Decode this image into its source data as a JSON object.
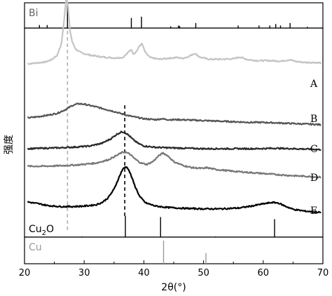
{
  "chart_data": {
    "type": "line",
    "xlabel": "2θ(°)",
    "ylabel": "强度(a.u.)",
    "ylabel_visible": "强度",
    "xlim": [
      20,
      70
    ],
    "x_ticks": [
      20,
      30,
      40,
      50,
      60,
      70
    ],
    "y_ticks_shown": false,
    "grid": false,
    "dashed_guides_2theta": [
      27.2,
      36.8
    ],
    "series": [
      {
        "name": "A",
        "color": "#c4c4c4",
        "x": [
          20.5,
          22,
          23.5,
          24.5,
          25.5,
          26.2,
          26.7,
          27.0,
          27.3,
          27.6,
          28.0,
          28.6,
          29.5,
          31,
          33,
          35,
          36.5,
          37.3,
          37.8,
          38.3,
          38.8,
          39.3,
          39.7,
          40.2,
          41,
          42.5,
          44,
          45.5,
          46.5,
          47.5,
          48.5,
          49.5,
          51,
          53,
          55,
          56,
          57.5,
          59,
          61,
          63,
          64.5,
          65.5,
          67,
          68.5,
          69.7
        ],
        "y": [
          0.6,
          0.62,
          0.64,
          0.69,
          0.79,
          1.05,
          1.65,
          2.1,
          1.85,
          1.35,
          1.08,
          0.92,
          0.84,
          0.79,
          0.75,
          0.73,
          0.74,
          0.84,
          0.92,
          0.82,
          0.88,
          1.0,
          1.04,
          0.86,
          0.74,
          0.7,
          0.72,
          0.74,
          0.72,
          0.76,
          0.83,
          0.74,
          0.7,
          0.7,
          0.71,
          0.75,
          0.69,
          0.67,
          0.67,
          0.66,
          0.69,
          0.65,
          0.63,
          0.63,
          0.62
        ]
      },
      {
        "name": "B",
        "color": "#555555",
        "x": [
          20.5,
          22,
          24,
          25.5,
          27,
          28,
          29,
          30,
          31,
          32,
          33.5,
          35,
          36.5,
          38,
          40,
          42,
          43,
          44,
          46,
          48,
          50,
          52,
          54,
          56,
          58,
          60,
          62,
          64,
          66,
          68,
          69.7
        ],
        "y": [
          0.0,
          0.02,
          0.06,
          0.1,
          0.19,
          0.27,
          0.31,
          0.3,
          0.27,
          0.24,
          0.19,
          0.14,
          0.08,
          0.03,
          -0.02,
          -0.04,
          -0.02,
          -0.04,
          -0.04,
          -0.05,
          -0.06,
          -0.07,
          -0.08,
          -0.09,
          -0.1,
          -0.1,
          -0.11,
          -0.12,
          -0.13,
          -0.14,
          -0.15
        ]
      },
      {
        "name": "C",
        "color": "#2a2a2a",
        "x": [
          20.5,
          23,
          26,
          29,
          31,
          33,
          34.5,
          35.5,
          36.3,
          36.8,
          37.4,
          38.2,
          39,
          40,
          42,
          44,
          47,
          50,
          53,
          56,
          59,
          62,
          65,
          68,
          69.7
        ],
        "y": [
          0.0,
          0.01,
          0.02,
          0.04,
          0.06,
          0.12,
          0.22,
          0.32,
          0.37,
          0.36,
          0.3,
          0.2,
          0.12,
          0.06,
          0.03,
          0.02,
          0.01,
          0.0,
          0.0,
          0.0,
          0.0,
          0.01,
          0.0,
          -0.01,
          -0.02
        ]
      },
      {
        "name": "D",
        "color": "#777777",
        "x": [
          20.5,
          23,
          26,
          29,
          32,
          34,
          35.5,
          36.3,
          36.9,
          37.6,
          38.5,
          39.5,
          40.5,
          41.5,
          42.5,
          43.2,
          44,
          45,
          46.5,
          48,
          50,
          50.5,
          52,
          55,
          58,
          61,
          64,
          67,
          69.7
        ],
        "y": [
          0.0,
          0.0,
          0.01,
          0.03,
          0.07,
          0.14,
          0.24,
          0.3,
          0.31,
          0.27,
          0.16,
          0.07,
          0.04,
          0.1,
          0.23,
          0.29,
          0.23,
          0.1,
          0.02,
          -0.03,
          -0.05,
          -0.03,
          -0.07,
          -0.11,
          -0.14,
          -0.17,
          -0.2,
          -0.22,
          -0.24
        ]
      },
      {
        "name": "E",
        "color": "#000000",
        "x": [
          20.5,
          22,
          24,
          26,
          28,
          30,
          32,
          33,
          34,
          35,
          35.8,
          36.4,
          36.9,
          37.3,
          37.8,
          38.5,
          39.3,
          40.3,
          42,
          44,
          47,
          50,
          53,
          56,
          58,
          60,
          61.5,
          62.5,
          63.5,
          65,
          67,
          69.7
        ],
        "y": [
          0.0,
          -0.03,
          -0.08,
          -0.1,
          -0.1,
          -0.09,
          -0.06,
          -0.01,
          0.09,
          0.28,
          0.53,
          0.71,
          0.77,
          0.75,
          0.6,
          0.35,
          0.12,
          -0.02,
          -0.09,
          -0.12,
          -0.14,
          -0.15,
          -0.15,
          -0.13,
          -0.09,
          -0.04,
          -0.01,
          -0.02,
          -0.08,
          -0.16,
          -0.2,
          -0.23
        ]
      }
    ],
    "reference_patterns": [
      {
        "name": "Bi",
        "color": "#000000",
        "label_color": "#666666",
        "peaks": [
          22.5,
          23.8,
          27.2,
          37.9,
          39.6,
          44.5,
          45.8,
          46.0,
          48.7,
          55.8,
          59.3,
          61.1,
          62.1,
          62.9,
          64.5,
          67.4
        ],
        "intensities": [
          0.12,
          0.12,
          1.0,
          0.4,
          0.45,
          0.07,
          0.1,
          0.08,
          0.2,
          0.1,
          0.1,
          0.1,
          0.16,
          0.1,
          0.2,
          0.05
        ]
      },
      {
        "name": "Cu2O",
        "color": "#000000",
        "label_color": "#000000",
        "peaks": [
          29.6,
          36.9,
          42.8,
          52.0,
          61.9
        ],
        "intensities": [
          0.03,
          1.0,
          0.95,
          0.03,
          0.85
        ]
      },
      {
        "name": "Cu",
        "color": "#9a9a9a",
        "label_color": "#9a9a9a",
        "peaks": [
          43.3,
          50.4
        ],
        "intensities": [
          1.0,
          0.46
        ]
      }
    ]
  }
}
